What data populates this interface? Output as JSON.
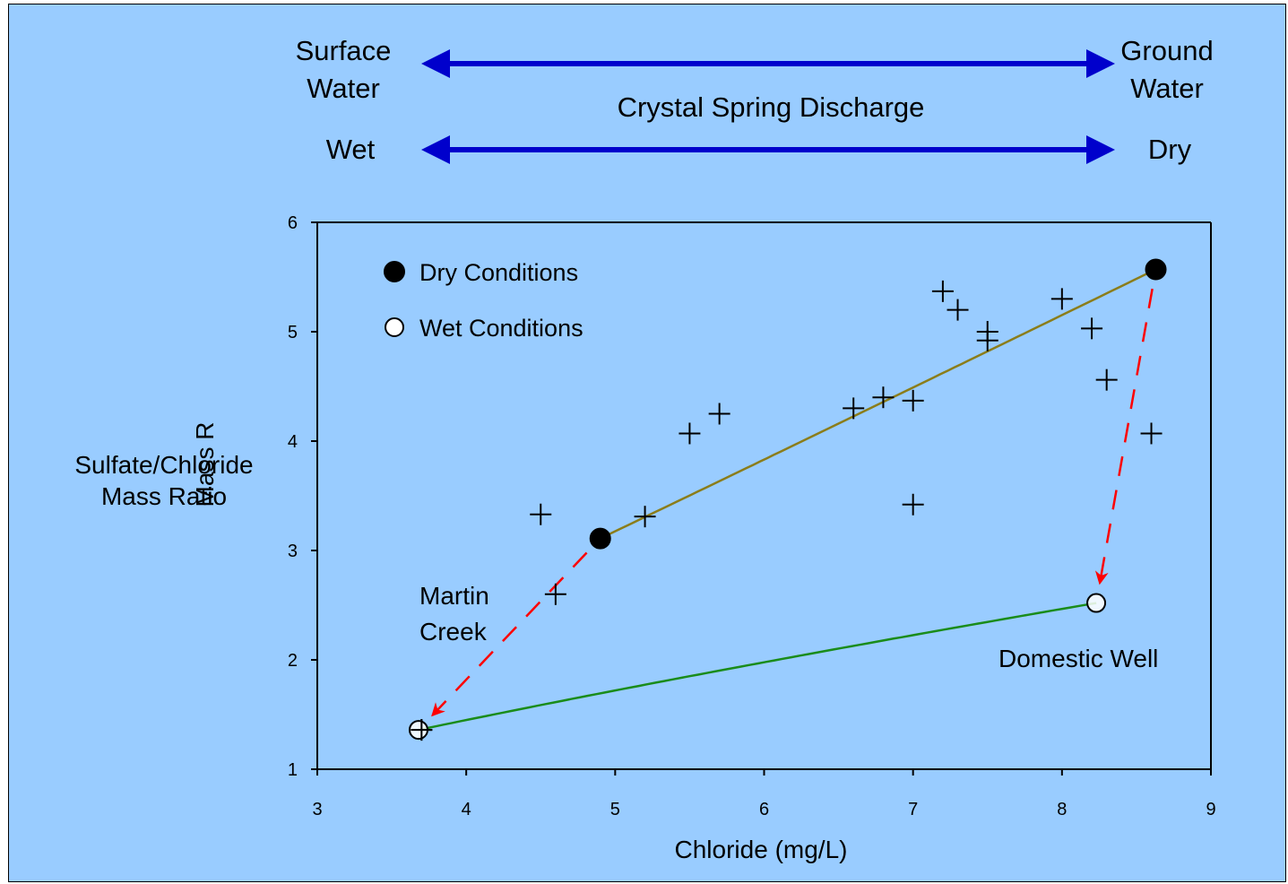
{
  "header": {
    "left_top": [
      "Surface",
      "Water"
    ],
    "right_top": [
      "Ground",
      "Water"
    ],
    "center": "Crystal Spring Discharge",
    "left_bottom": "Wet",
    "right_bottom": "Dry"
  },
  "colors": {
    "background": "#99ccff",
    "arrow": "#0000cc",
    "wet": "#007a00",
    "dry": "#663300",
    "dry_curve": "#8b7d1a",
    "wet_curve": "#1a8c1a",
    "dashed": "#ff0000"
  },
  "chart_data": {
    "type": "scatter",
    "title": "",
    "xlabel": "Chloride (mg/L)",
    "ylabel": [
      "Sulfate/Chloride",
      "Mass Ratio"
    ],
    "ylabel_overlap": "Mass R",
    "xlim": [
      3,
      9
    ],
    "ylim": [
      1,
      6
    ],
    "xticks": [
      3,
      4,
      5,
      6,
      7,
      8,
      9
    ],
    "yticks": [
      1,
      2,
      3,
      4,
      5,
      6
    ],
    "legend": [
      {
        "name": "Dry Conditions",
        "marker": "filled-circle"
      },
      {
        "name": "Wet Conditions",
        "marker": "open-circle"
      }
    ],
    "legend_position": "top-left",
    "grid": false,
    "series": [
      {
        "marker": "plus",
        "points": [
          [
            3.7,
            1.36
          ],
          [
            4.5,
            3.33
          ],
          [
            4.6,
            2.6
          ],
          [
            5.2,
            3.31
          ],
          [
            5.5,
            4.07
          ],
          [
            5.7,
            4.25
          ],
          [
            6.6,
            4.3
          ],
          [
            6.8,
            4.4
          ],
          [
            7.0,
            4.37
          ],
          [
            7.0,
            3.42
          ],
          [
            7.2,
            5.37
          ],
          [
            7.3,
            5.2
          ],
          [
            7.5,
            5.0
          ],
          [
            7.5,
            4.92
          ],
          [
            8.0,
            5.3
          ],
          [
            8.2,
            5.03
          ],
          [
            8.3,
            4.56
          ],
          [
            8.6,
            4.07
          ]
        ]
      },
      {
        "name": "Dry Conditions",
        "marker": "filled-circle",
        "points": [
          [
            4.9,
            3.11
          ],
          [
            8.63,
            5.57
          ]
        ]
      },
      {
        "name": "Wet Conditions",
        "marker": "open-circle",
        "points": [
          [
            3.68,
            1.36
          ],
          [
            8.23,
            2.52
          ]
        ]
      }
    ],
    "curves": [
      {
        "condition": "dry",
        "from": [
          4.9,
          3.11
        ],
        "to": [
          8.63,
          5.57
        ]
      },
      {
        "condition": "wet",
        "from": [
          3.68,
          1.36
        ],
        "to": [
          8.23,
          2.52
        ]
      }
    ],
    "annotations": [
      {
        "text": [
          "Martin",
          "Creek"
        ],
        "arrow_from": [
          4.9,
          3.11
        ],
        "arrow_to": [
          3.68,
          1.36
        ]
      },
      {
        "text": [
          "Domestic Well"
        ],
        "arrow_from": [
          8.63,
          5.57
        ],
        "arrow_to": [
          8.23,
          2.52
        ]
      }
    ]
  }
}
